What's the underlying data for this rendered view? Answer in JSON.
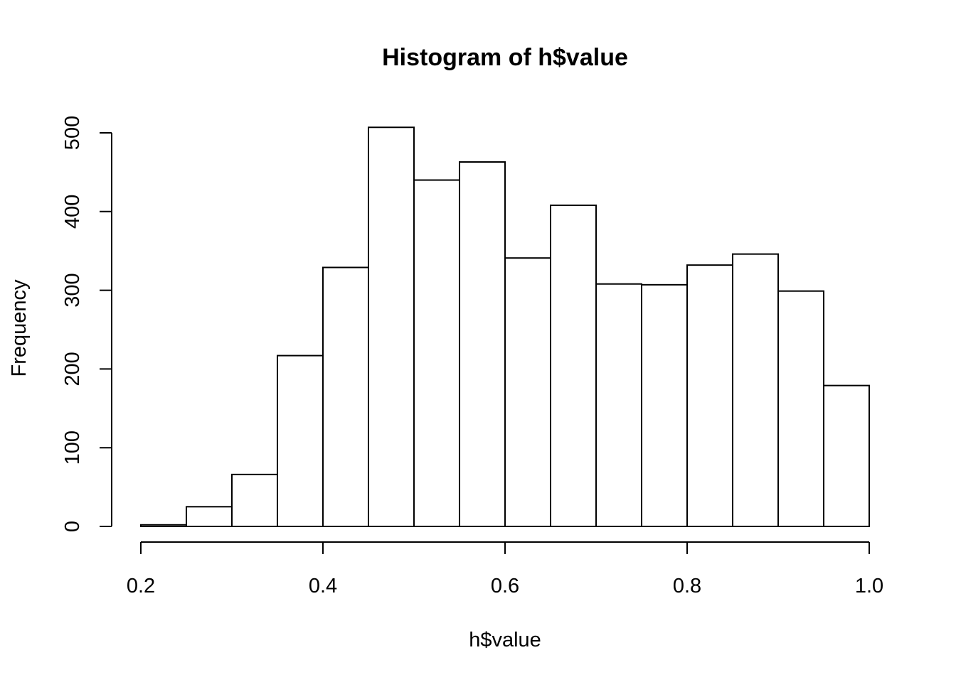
{
  "chart_data": {
    "type": "bar",
    "subtype": "histogram",
    "title": "Histogram of h$value",
    "xlabel": "h$value",
    "ylabel": "Frequency",
    "xlim": [
      0.2,
      1.0
    ],
    "ylim": [
      0,
      500
    ],
    "x_ticks": [
      0.2,
      0.4,
      0.6,
      0.8,
      1.0
    ],
    "x_tick_labels": [
      "0.2",
      "0.4",
      "0.6",
      "0.8",
      "1.0"
    ],
    "y_ticks": [
      0,
      100,
      200,
      300,
      400,
      500
    ],
    "y_tick_labels": [
      "0",
      "100",
      "200",
      "300",
      "400",
      "500"
    ],
    "grid": false,
    "bins": [
      {
        "x0": 0.2,
        "x1": 0.25,
        "count": 2
      },
      {
        "x0": 0.25,
        "x1": 0.3,
        "count": 25
      },
      {
        "x0": 0.3,
        "x1": 0.35,
        "count": 66
      },
      {
        "x0": 0.35,
        "x1": 0.4,
        "count": 217
      },
      {
        "x0": 0.4,
        "x1": 0.45,
        "count": 329
      },
      {
        "x0": 0.45,
        "x1": 0.5,
        "count": 507
      },
      {
        "x0": 0.5,
        "x1": 0.55,
        "count": 440
      },
      {
        "x0": 0.55,
        "x1": 0.6,
        "count": 463
      },
      {
        "x0": 0.6,
        "x1": 0.65,
        "count": 341
      },
      {
        "x0": 0.65,
        "x1": 0.7,
        "count": 408
      },
      {
        "x0": 0.7,
        "x1": 0.75,
        "count": 308
      },
      {
        "x0": 0.75,
        "x1": 0.8,
        "count": 307
      },
      {
        "x0": 0.8,
        "x1": 0.85,
        "count": 332
      },
      {
        "x0": 0.85,
        "x1": 0.9,
        "count": 346
      },
      {
        "x0": 0.9,
        "x1": 0.95,
        "count": 299
      },
      {
        "x0": 0.95,
        "x1": 1.0,
        "count": 179
      }
    ]
  }
}
